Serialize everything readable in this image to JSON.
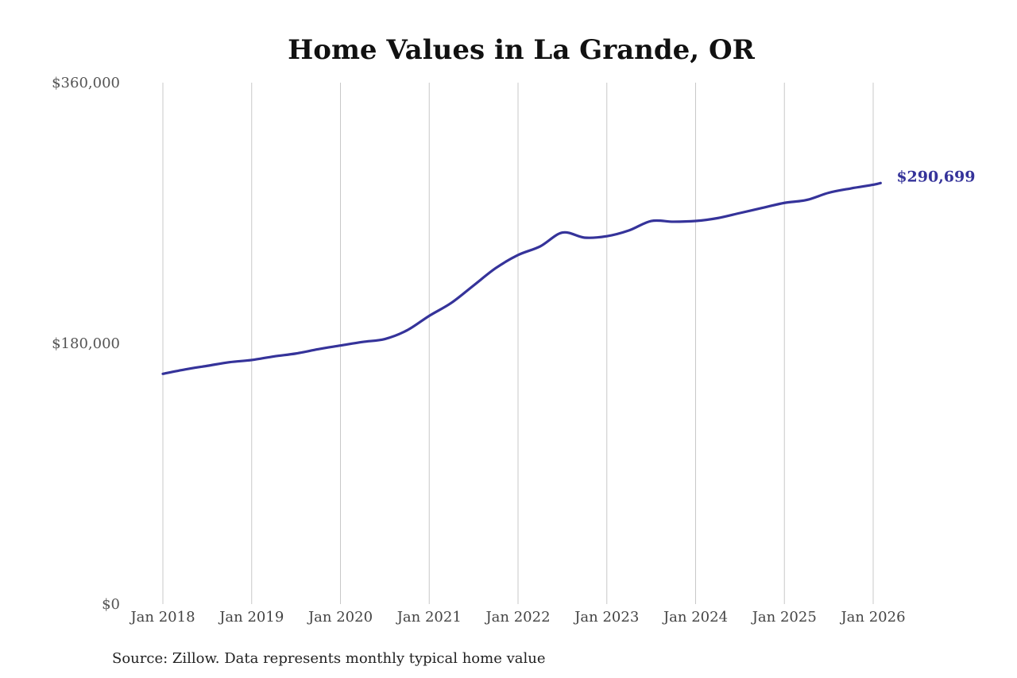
{
  "chart_data": {
    "type": "line",
    "title": "Home Values in La Grande, OR",
    "source": "Source: Zillow. Data represents monthly typical home value",
    "xlabel": "",
    "ylabel": "",
    "ylim": [
      0,
      360000
    ],
    "y_ticks": [
      0,
      180000,
      360000
    ],
    "y_tick_labels": [
      "$0",
      "$180,000",
      "$360,000"
    ],
    "x_range": [
      "2018-01",
      "2026-02"
    ],
    "x_ticks": [
      "2018-01",
      "2019-01",
      "2020-01",
      "2021-01",
      "2022-01",
      "2023-01",
      "2024-01",
      "2025-01",
      "2026-01"
    ],
    "x_tick_labels": [
      "Jan 2018",
      "Jan 2019",
      "Jan 2020",
      "Jan 2021",
      "Jan 2022",
      "Jan 2023",
      "Jan 2024",
      "Jan 2025",
      "Jan 2026"
    ],
    "grid": "vertical",
    "line_color": "#35339a",
    "end_label": "$290,699",
    "series": [
      {
        "x": [
          "2018-01",
          "2018-04",
          "2018-07",
          "2018-10",
          "2019-01",
          "2019-04",
          "2019-07",
          "2019-10",
          "2020-01",
          "2020-04",
          "2020-07",
          "2020-10",
          "2021-01",
          "2021-04",
          "2021-07",
          "2021-10",
          "2022-01",
          "2022-04",
          "2022-07",
          "2022-10",
          "2023-01",
          "2023-04",
          "2023-07",
          "2023-10",
          "2024-01",
          "2024-04",
          "2024-07",
          "2024-10",
          "2025-01",
          "2025-04",
          "2025-07",
          "2025-10",
          "2026-01",
          "2026-02"
        ],
        "values": [
          159000,
          162000,
          164500,
          167000,
          168500,
          171000,
          173000,
          176000,
          178500,
          181000,
          183000,
          189000,
          199000,
          208000,
          220000,
          232000,
          241000,
          247000,
          256500,
          253000,
          254000,
          258000,
          264500,
          264000,
          264500,
          266500,
          270000,
          273500,
          277000,
          279000,
          284000,
          287000,
          289500,
          290699
        ]
      }
    ]
  }
}
